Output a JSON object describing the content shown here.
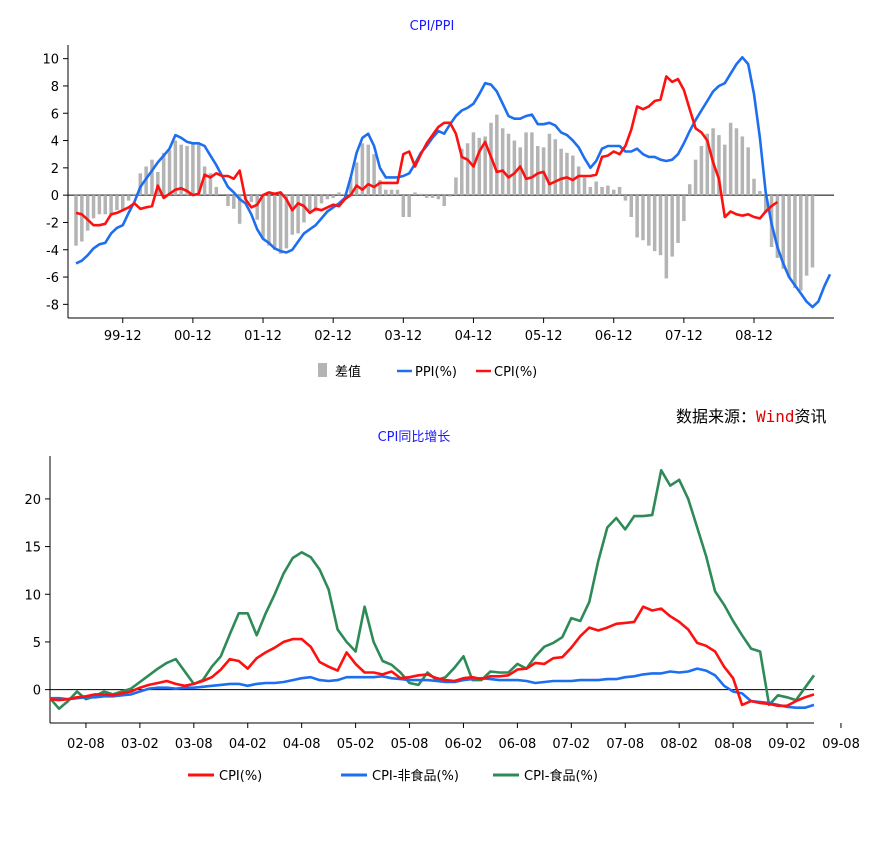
{
  "source": {
    "prefix": "数据来源：",
    "brand": "Wind",
    "suffix": "资讯"
  },
  "chart_data": [
    {
      "type": "line",
      "title": "CPI/PPI",
      "x_ticks": [
        "99-12",
        "00-12",
        "01-12",
        "02-12",
        "03-12",
        "04-12",
        "05-12",
        "06-12",
        "07-12",
        "08-12"
      ],
      "ylim": [
        -9,
        11
      ],
      "yticks": [
        -8,
        -6,
        -4,
        -2,
        0,
        2,
        4,
        6,
        8,
        10
      ],
      "colors": {
        "diff": "#b4b4b4",
        "ppi": "#1e6ff0",
        "cpi": "#ff1010"
      },
      "legend": {
        "diff": "差值",
        "ppi": "PPI(%)",
        "cpi": "CPI(%)"
      },
      "series": [
        {
          "name": "PPI(%)",
          "type": "line",
          "color": "#1e6ff0",
          "values": [
            -5.0,
            -4.8,
            -4.4,
            -3.9,
            -3.6,
            -3.5,
            -2.8,
            -2.4,
            -2.2,
            -1.3,
            -0.5,
            0.6,
            1.2,
            1.8,
            2.4,
            2.9,
            3.4,
            4.4,
            4.2,
            3.9,
            3.8,
            3.8,
            3.6,
            2.9,
            2.2,
            1.4,
            0.6,
            0.2,
            -0.3,
            -0.6,
            -1.4,
            -2.5,
            -3.2,
            -3.5,
            -3.9,
            -4.1,
            -4.2,
            -4.0,
            -3.4,
            -2.8,
            -2.5,
            -2.2,
            -1.7,
            -1.2,
            -0.9,
            -0.6,
            -0.2,
            1.3,
            3.1,
            4.2,
            4.5,
            3.6,
            2.0,
            1.3,
            1.3,
            1.3,
            1.4,
            1.6,
            2.3,
            3.1,
            3.6,
            4.2,
            4.7,
            4.5,
            5.2,
            5.8,
            6.2,
            6.4,
            6.7,
            7.4,
            8.2,
            8.1,
            7.6,
            6.7,
            5.8,
            5.6,
            5.6,
            5.8,
            5.9,
            5.2,
            5.2,
            5.3,
            5.1,
            4.6,
            4.4,
            4.0,
            3.5,
            2.7,
            2.0,
            2.5,
            3.4,
            3.6,
            3.6,
            3.6,
            3.2,
            3.2,
            3.4,
            3.0,
            2.8,
            2.8,
            2.6,
            2.5,
            2.6,
            3.0,
            3.8,
            4.7,
            5.5,
            6.2,
            6.9,
            7.6,
            8.0,
            8.2,
            8.9,
            9.6,
            10.1,
            9.6,
            7.4,
            4.2,
            0.2,
            -2.1,
            -3.8,
            -5.0,
            -6.0,
            -6.6,
            -7.2,
            -7.8,
            -8.2,
            -7.8,
            -6.7,
            -5.8
          ]
        },
        {
          "name": "CPI(%)",
          "type": "line",
          "color": "#ff1010",
          "values": [
            -1.3,
            -1.4,
            -1.8,
            -2.2,
            -2.2,
            -2.1,
            -1.4,
            -1.3,
            -1.1,
            -0.9,
            -0.6,
            -1.0,
            -0.9,
            -0.8,
            0.7,
            -0.2,
            0.1,
            0.4,
            0.5,
            0.3,
            0.0,
            0.1,
            1.5,
            1.3,
            1.6,
            1.4,
            1.4,
            1.2,
            1.8,
            -0.3,
            -0.9,
            -0.7,
            0.0,
            0.2,
            0.1,
            0.2,
            -0.3,
            -1.1,
            -0.6,
            -0.8,
            -1.3,
            -1.0,
            -1.1,
            -0.9,
            -0.7,
            -0.8,
            -0.3,
            0.0,
            0.7,
            0.4,
            0.8,
            0.6,
            0.9,
            0.9,
            0.9,
            0.9,
            3.0,
            3.2,
            2.1,
            3.0,
            3.8,
            4.4,
            5.0,
            5.3,
            5.3,
            4.5,
            2.8,
            2.6,
            2.1,
            3.2,
            3.9,
            2.8,
            1.7,
            1.8,
            1.3,
            1.6,
            2.1,
            1.2,
            1.3,
            1.6,
            1.7,
            0.8,
            1.0,
            1.2,
            1.3,
            1.1,
            1.4,
            1.4,
            1.4,
            1.5,
            2.8,
            2.9,
            3.2,
            3.0,
            3.6,
            4.8,
            6.5,
            6.3,
            6.5,
            6.9,
            7.0,
            8.7,
            8.3,
            8.5,
            7.7,
            6.3,
            4.9,
            4.6,
            4.0,
            2.4,
            1.2,
            -1.6,
            -1.2,
            -1.4,
            -1.5,
            -1.4,
            -1.6,
            -1.7,
            -1.2,
            -0.8,
            -0.5
          ]
        },
        {
          "name": "差值",
          "type": "bar",
          "color": "#b4b4b4",
          "values": [
            -3.7,
            -3.4,
            -2.6,
            -1.7,
            -1.4,
            -1.4,
            -1.4,
            -1.1,
            -1.1,
            -0.4,
            0.1,
            1.6,
            2.1,
            2.6,
            1.7,
            3.1,
            3.3,
            4.0,
            3.7,
            3.6,
            3.8,
            3.7,
            2.1,
            1.6,
            0.6,
            0.0,
            -0.8,
            -1.0,
            -2.1,
            -0.3,
            -0.5,
            -1.8,
            -3.2,
            -3.7,
            -4.0,
            -4.3,
            -3.9,
            -2.9,
            -2.8,
            -2.0,
            -1.2,
            -1.2,
            -0.6,
            -0.3,
            -0.2,
            0.2,
            0.1,
            1.3,
            2.4,
            3.8,
            3.7,
            3.0,
            1.1,
            0.4,
            0.4,
            0.4,
            -1.6,
            -1.6,
            0.2,
            0.1,
            -0.2,
            -0.2,
            -0.3,
            -0.8,
            -0.1,
            1.3,
            3.4,
            3.8,
            4.6,
            4.2,
            4.3,
            5.3,
            5.9,
            4.9,
            4.5,
            4.0,
            3.5,
            4.6,
            4.6,
            3.6,
            3.5,
            4.5,
            4.1,
            3.4,
            3.1,
            2.9,
            2.1,
            1.3,
            0.6,
            1.0,
            0.6,
            0.7,
            0.4,
            0.6,
            -0.4,
            -1.6,
            -3.1,
            -3.3,
            -3.7,
            -4.1,
            -4.4,
            -6.1,
            -4.5,
            -3.5,
            -1.9,
            0.8,
            2.6,
            3.6,
            4.5,
            4.9,
            4.4,
            3.7,
            5.3,
            4.9,
            4.3,
            3.5,
            1.2,
            0.3,
            -1.3,
            -3.8,
            -4.6,
            -5.4,
            -6.0,
            -6.8,
            -7.0,
            -5.9,
            -5.3
          ]
        }
      ]
    },
    {
      "type": "line",
      "title": "CPI同比增长",
      "x_ticks": [
        "02-08",
        "03-02",
        "03-08",
        "04-02",
        "04-08",
        "05-02",
        "05-08",
        "06-02",
        "06-08",
        "07-02",
        "07-08",
        "08-02",
        "08-08",
        "09-02",
        "09-08"
      ],
      "ylim": [
        -3.5,
        24.5
      ],
      "yticks": [
        0,
        5,
        10,
        15,
        20
      ],
      "legend": {
        "cpi": "CPI(%)",
        "nonfood": "CPI-非食品(%)",
        "food": "CPI-食品(%)"
      },
      "series": [
        {
          "name": "CPI(%)",
          "color": "#ff1010",
          "values": [
            -1.0,
            -1.1,
            -1.0,
            -0.8,
            -0.7,
            -0.5,
            -0.5,
            -0.6,
            -0.4,
            -0.2,
            0.2,
            0.5,
            0.7,
            0.9,
            0.6,
            0.4,
            0.6,
            0.9,
            1.3,
            2.1,
            3.2,
            3.0,
            2.2,
            3.3,
            3.9,
            4.4,
            5.0,
            5.3,
            5.3,
            4.5,
            2.9,
            2.4,
            2.0,
            3.9,
            2.7,
            1.8,
            1.8,
            1.6,
            1.9,
            1.2,
            1.3,
            1.5,
            1.6,
            1.2,
            1.0,
            0.9,
            1.2,
            1.3,
            1.1,
            1.4,
            1.4,
            1.5,
            2.1,
            2.2,
            2.8,
            2.7,
            3.3,
            3.4,
            4.4,
            5.6,
            6.5,
            6.2,
            6.5,
            6.9,
            7.0,
            7.1,
            8.7,
            8.3,
            8.5,
            7.7,
            7.1,
            6.3,
            4.9,
            4.6,
            4.0,
            2.4,
            1.2,
            -1.6,
            -1.2,
            -1.4,
            -1.5,
            -1.7,
            -1.7,
            -1.2,
            -0.8,
            -0.5
          ]
        },
        {
          "name": "CPI-非食品(%)",
          "color": "#1e6ff0",
          "values": [
            -0.9,
            -0.9,
            -1.0,
            -0.9,
            -0.8,
            -0.8,
            -0.7,
            -0.7,
            -0.6,
            -0.5,
            -0.2,
            0.1,
            0.2,
            0.2,
            0.1,
            0.2,
            0.2,
            0.3,
            0.4,
            0.5,
            0.6,
            0.6,
            0.4,
            0.6,
            0.7,
            0.7,
            0.8,
            1.0,
            1.2,
            1.3,
            1.0,
            0.9,
            1.0,
            1.3,
            1.3,
            1.3,
            1.3,
            1.4,
            1.2,
            1.1,
            1.0,
            1.0,
            1.0,
            0.9,
            0.8,
            0.8,
            1.0,
            1.1,
            1.2,
            1.1,
            1.0,
            1.0,
            1.0,
            0.9,
            0.7,
            0.8,
            0.9,
            0.9,
            0.9,
            1.0,
            1.0,
            1.0,
            1.1,
            1.1,
            1.3,
            1.4,
            1.6,
            1.7,
            1.7,
            1.9,
            1.8,
            1.9,
            2.2,
            2.0,
            1.5,
            0.4,
            -0.2,
            -0.4,
            -1.2,
            -1.3,
            -1.4,
            -1.6,
            -1.8,
            -1.9,
            -1.9,
            -1.6
          ]
        },
        {
          "name": "CPI-食品(%)",
          "color": "#2e8b57",
          "values": [
            -0.9,
            -2.0,
            -1.2,
            -0.2,
            -1.0,
            -0.7,
            -0.2,
            -0.5,
            -0.2,
            0.1,
            0.8,
            1.5,
            2.2,
            2.8,
            3.2,
            1.9,
            0.6,
            1.0,
            2.4,
            3.5,
            5.8,
            8.0,
            8.0,
            5.7,
            8.0,
            10.0,
            12.2,
            13.8,
            14.4,
            13.9,
            12.6,
            10.5,
            6.3,
            5.0,
            4.0,
            8.7,
            5.0,
            3.0,
            2.6,
            1.8,
            0.7,
            0.5,
            1.8,
            1.0,
            1.3,
            2.3,
            3.5,
            1.0,
            1.0,
            1.9,
            1.8,
            1.8,
            2.7,
            2.2,
            3.5,
            4.5,
            4.9,
            5.5,
            7.5,
            7.2,
            9.2,
            13.5,
            17.0,
            18.0,
            16.8,
            18.2,
            18.2,
            18.3,
            23.0,
            21.4,
            22.0,
            20.0,
            17.0,
            14.0,
            10.3,
            8.9,
            7.2,
            5.7,
            4.3,
            4.0,
            -1.6,
            -0.6,
            -0.8,
            -1.1,
            0.2,
            1.5
          ]
        }
      ]
    }
  ]
}
